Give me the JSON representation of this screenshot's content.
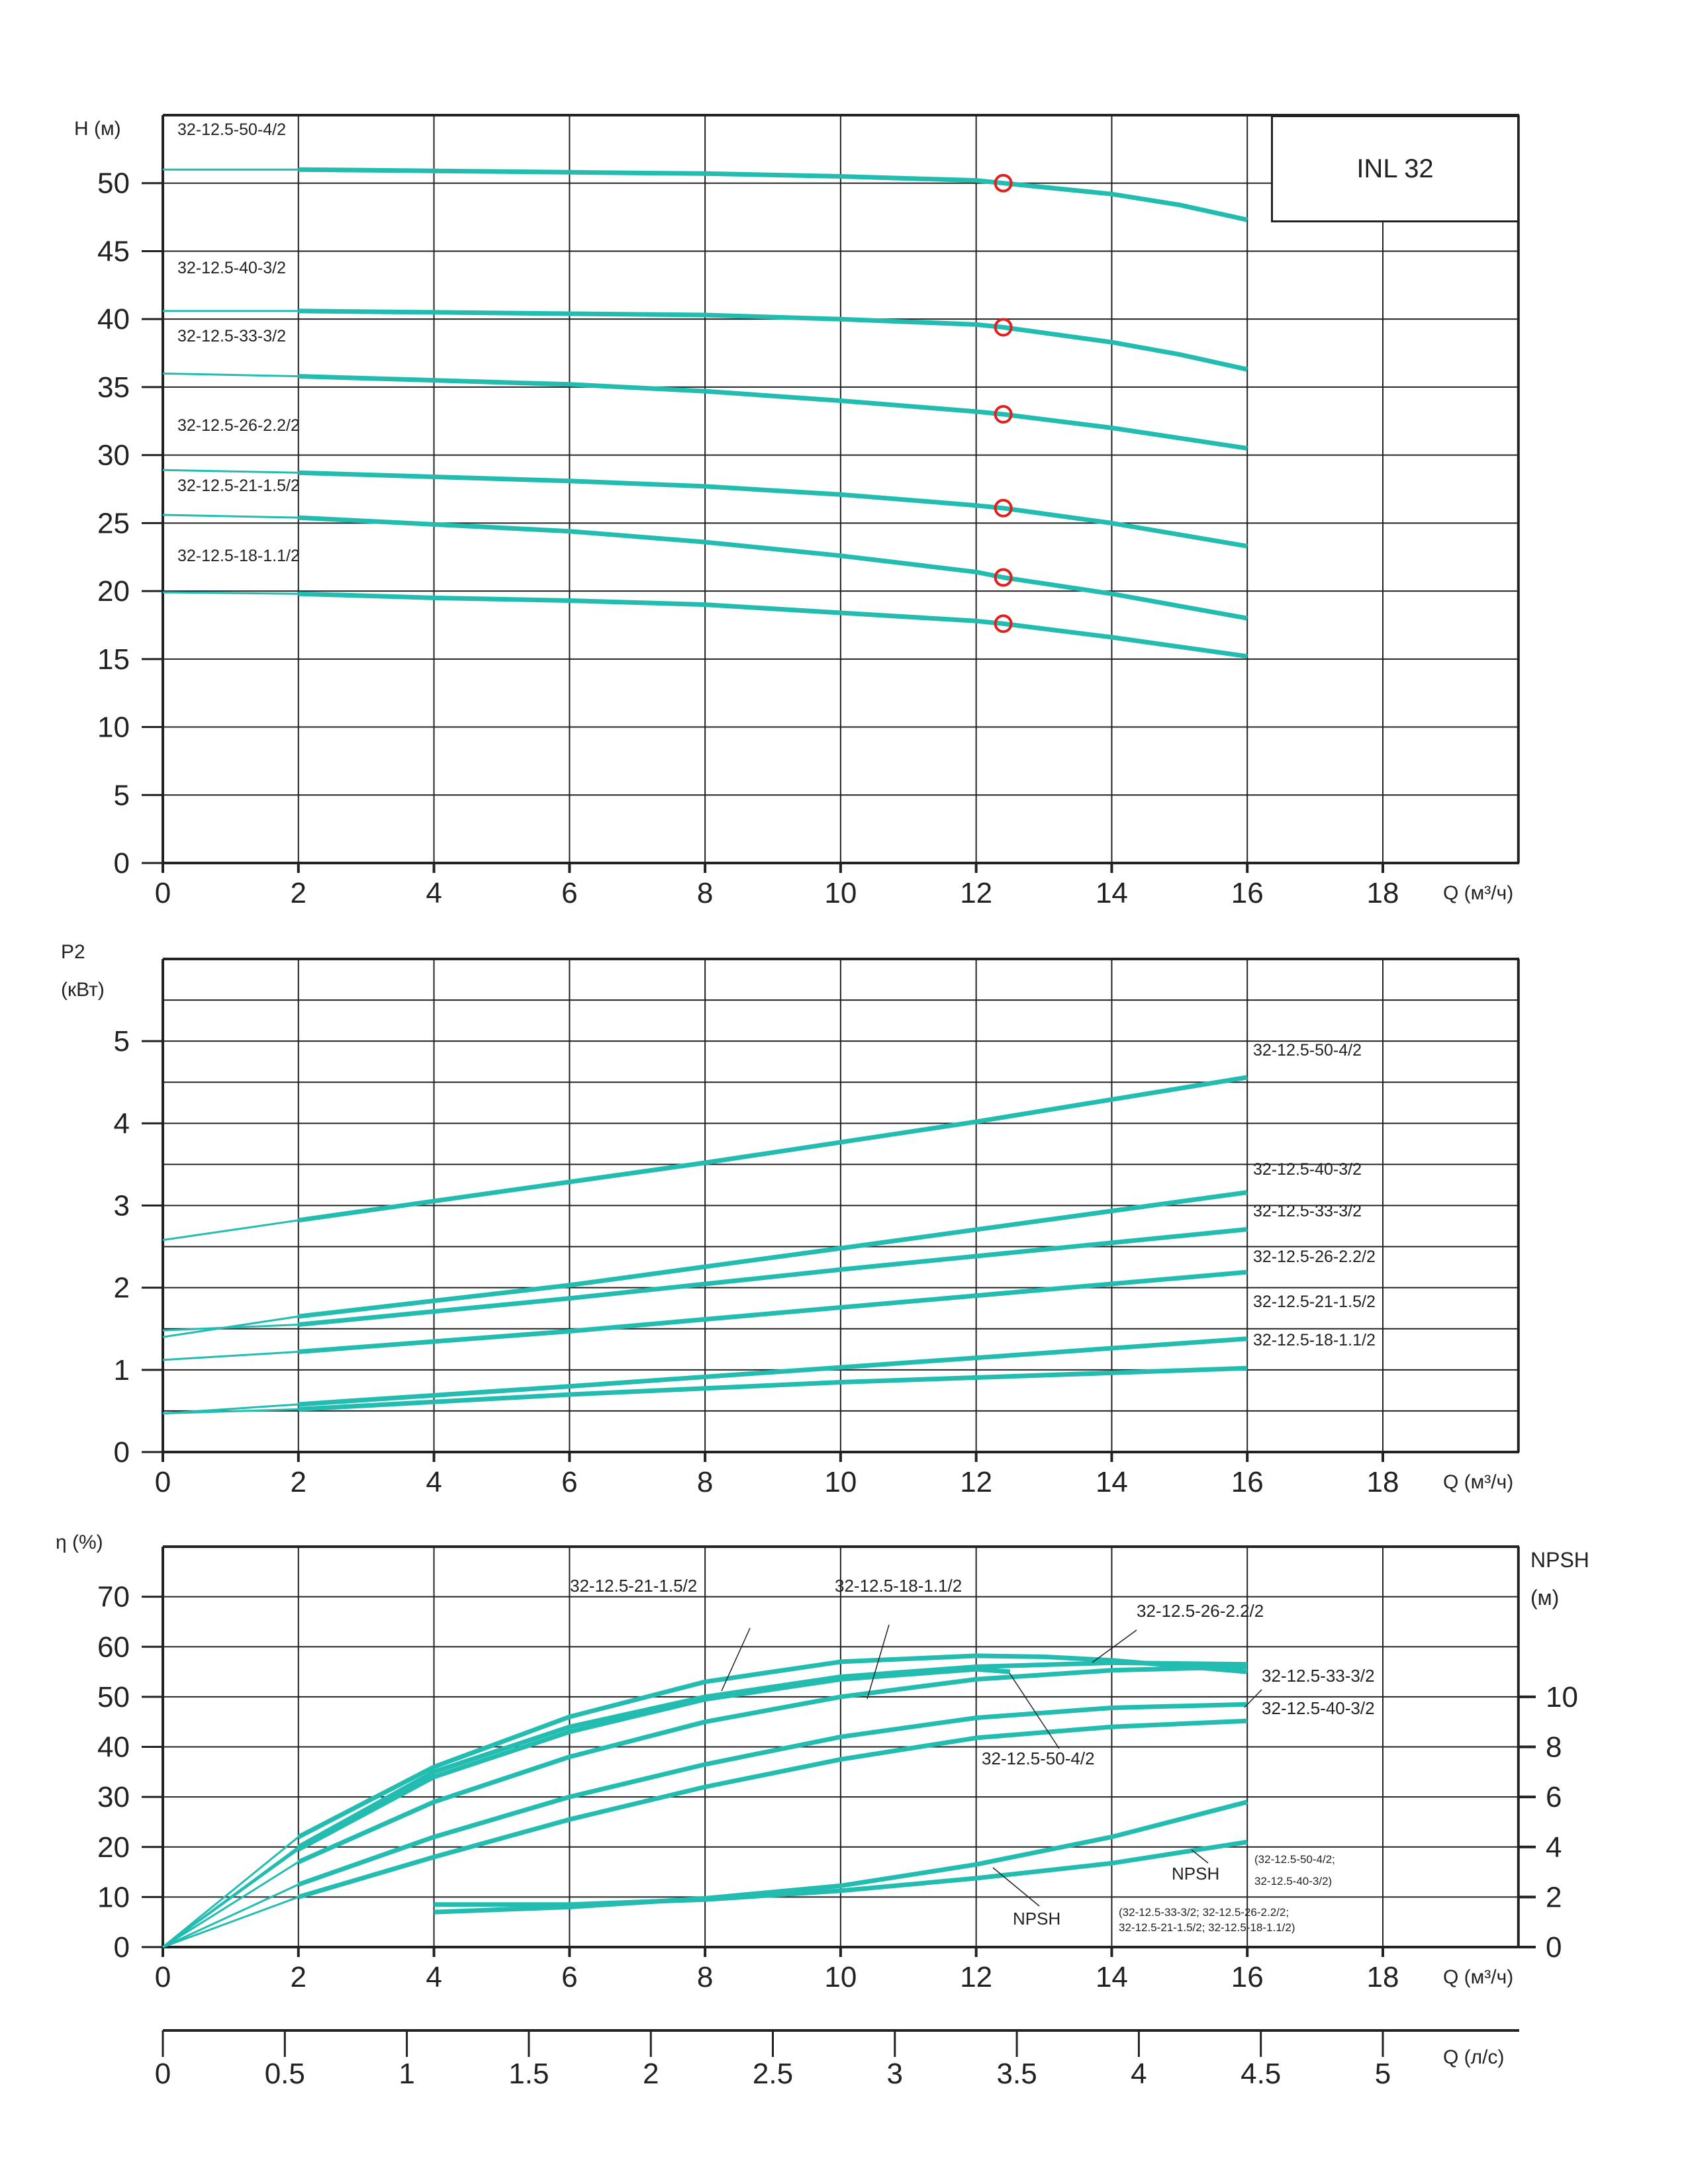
{
  "title": "INL 32",
  "accent": "#22bdb0",
  "duty_color": "#e0201c",
  "chart_data": [
    {
      "type": "line",
      "id": "head",
      "ylabel": "H (м)",
      "xlabel": "Q (м³/ч)",
      "xlim": [
        0,
        20
      ],
      "ylim": [
        0,
        55
      ],
      "xticks": [
        0,
        2,
        4,
        6,
        8,
        10,
        12,
        14,
        16,
        18
      ],
      "yticks": [
        0,
        5,
        10,
        15,
        20,
        25,
        30,
        35,
        40,
        45,
        50
      ],
      "grid": true,
      "duty_points_x": 12.4,
      "series": [
        {
          "name": "32-12.5-50-4/2",
          "x": [
            0,
            2,
            4,
            6,
            8,
            10,
            12,
            12.4,
            14,
            15,
            16
          ],
          "y": [
            51.0,
            51.0,
            50.9,
            50.8,
            50.7,
            50.5,
            50.2,
            50.0,
            49.2,
            48.4,
            47.3
          ]
        },
        {
          "name": "32-12.5-40-3/2",
          "x": [
            0,
            2,
            4,
            6,
            8,
            10,
            12,
            12.4,
            14,
            15,
            16
          ],
          "y": [
            40.6,
            40.6,
            40.5,
            40.4,
            40.3,
            40.0,
            39.6,
            39.4,
            38.3,
            37.4,
            36.3
          ]
        },
        {
          "name": "32-12.5-33-3/2",
          "x": [
            0,
            2,
            4,
            6,
            8,
            10,
            12,
            12.4,
            14,
            16
          ],
          "y": [
            36.0,
            35.8,
            35.5,
            35.2,
            34.7,
            34.0,
            33.2,
            33.0,
            32.0,
            30.5
          ]
        },
        {
          "name": "32-12.5-26-2.2/2",
          "x": [
            0,
            2,
            4,
            6,
            8,
            10,
            12,
            12.4,
            14,
            16
          ],
          "y": [
            28.9,
            28.7,
            28.4,
            28.1,
            27.7,
            27.1,
            26.3,
            26.1,
            25.0,
            23.3
          ]
        },
        {
          "name": "32-12.5-21-1.5/2",
          "x": [
            0,
            2,
            4,
            6,
            8,
            10,
            12,
            12.4,
            14,
            16
          ],
          "y": [
            25.6,
            25.4,
            24.9,
            24.4,
            23.6,
            22.6,
            21.4,
            21.0,
            19.8,
            18.0
          ]
        },
        {
          "name": "32-12.5-18-1.1/2",
          "x": [
            0,
            2,
            4,
            6,
            8,
            10,
            12,
            12.4,
            14,
            16
          ],
          "y": [
            19.9,
            19.8,
            19.5,
            19.3,
            19.0,
            18.4,
            17.8,
            17.6,
            16.6,
            15.2
          ]
        }
      ]
    },
    {
      "type": "line",
      "id": "power",
      "ylabel": "P2",
      "ylabel2": "(кВт)",
      "xlabel": "Q (м³/ч)",
      "xlim": [
        0,
        20
      ],
      "ylim": [
        0,
        6
      ],
      "xticks": [
        0,
        2,
        4,
        6,
        8,
        10,
        12,
        14,
        16,
        18
      ],
      "yticks": [
        0,
        1,
        2,
        3,
        4,
        5
      ],
      "grid": true,
      "series": [
        {
          "name": "32-12.5-50-4/2",
          "x": [
            0,
            2,
            8,
            12,
            16
          ],
          "y": [
            2.58,
            2.82,
            3.52,
            4.02,
            4.56
          ]
        },
        {
          "name": "32-12.5-40-3/2",
          "x": [
            0,
            2,
            6,
            10,
            16
          ],
          "y": [
            1.4,
            1.65,
            2.03,
            2.48,
            3.16
          ]
        },
        {
          "name": "32-12.5-33-3/2",
          "x": [
            0,
            2,
            6,
            10,
            16
          ],
          "y": [
            1.48,
            1.55,
            1.87,
            2.22,
            2.71
          ]
        },
        {
          "name": "32-12.5-26-2.2/2",
          "x": [
            0,
            2,
            6,
            10,
            16
          ],
          "y": [
            1.12,
            1.22,
            1.47,
            1.76,
            2.19
          ]
        },
        {
          "name": "32-12.5-21-1.5/2",
          "x": [
            0,
            2,
            6,
            10,
            16
          ],
          "y": [
            0.47,
            0.58,
            0.8,
            1.03,
            1.38
          ]
        },
        {
          "name": "32-12.5-18-1.1/2",
          "x": [
            0,
            2,
            6,
            10,
            16
          ],
          "y": [
            0.47,
            0.52,
            0.7,
            0.85,
            1.02
          ]
        }
      ]
    },
    {
      "type": "line",
      "id": "efficiency",
      "ylabel": "η (%)",
      "y2label": "NPSH",
      "y2label2": "(м)",
      "xlabel": "Q (м³/ч)",
      "x2label": "Q (л/с)",
      "xlim": [
        0,
        20
      ],
      "ylim": [
        0,
        80
      ],
      "y2lim": [
        0,
        16
      ],
      "xticks": [
        0,
        2,
        4,
        6,
        8,
        10,
        12,
        14,
        16,
        18
      ],
      "yticks": [
        0,
        10,
        20,
        30,
        40,
        50,
        60,
        70
      ],
      "y2ticks": [
        0,
        2,
        4,
        6,
        8,
        10
      ],
      "x2ticks": [
        "0",
        "0.5",
        "1",
        "1.5",
        "2",
        "2.5",
        "3",
        "3.5",
        "4",
        "4.5",
        "5"
      ],
      "series": [
        {
          "name": "32-12.5-21-1.5/2",
          "x": [
            0,
            2,
            4,
            6,
            8,
            10,
            12,
            13,
            14,
            16
          ],
          "y": [
            0,
            22,
            36,
            46,
            53,
            57,
            58.2,
            58,
            57.3,
            55
          ]
        },
        {
          "name": "32-12.5-26-2.2/2",
          "x": [
            0,
            2,
            4,
            6,
            8,
            10,
            12,
            14,
            16
          ],
          "y": [
            0,
            20,
            35,
            44,
            50,
            54,
            56,
            56.8,
            56.5
          ]
        },
        {
          "name": "32-12.5-18-1.1/2",
          "x": [
            0,
            2,
            4,
            6,
            8,
            10,
            12,
            12.5
          ],
          "y": [
            0,
            19.5,
            34,
            43,
            49.5,
            53.5,
            55.5,
            55
          ]
        },
        {
          "name": "32-12.5-33-3/2",
          "x": [
            0,
            2,
            4,
            6,
            8,
            10,
            12,
            14,
            16
          ],
          "y": [
            0,
            17,
            29,
            38,
            45,
            50,
            53.5,
            55.3,
            56
          ]
        },
        {
          "name": "32-12.5-40-3/2",
          "x": [
            0,
            2,
            4,
            6,
            8,
            10,
            12,
            14,
            16
          ],
          "y": [
            0,
            12.5,
            22,
            30,
            36.5,
            42,
            45.8,
            47.8,
            48.5
          ]
        },
        {
          "name": "32-12.5-50-4/2",
          "x": [
            0,
            2,
            4,
            6,
            8,
            10,
            12,
            14,
            16
          ],
          "y": [
            0,
            10,
            18,
            25.5,
            32,
            37.5,
            41.8,
            44,
            45.2
          ]
        }
      ],
      "npsh_series": [
        {
          "name": "NPSH",
          "group": "(32-12.5-33-3/2; 32-12.5-26-2.2/2;",
          "group2": "32-12.5-21-1.5/2; 32-12.5-18-1.1/2)",
          "x": [
            4,
            6,
            8,
            10,
            12,
            14,
            16
          ],
          "y": [
            1.4,
            1.6,
            1.95,
            2.45,
            3.3,
            4.4,
            5.8
          ]
        },
        {
          "name": "NPSH",
          "group": "(32-12.5-50-4/2;",
          "group2": "32-12.5-40-3/2)",
          "x": [
            4,
            6,
            8,
            10,
            12,
            14,
            16
          ],
          "y": [
            1.7,
            1.7,
            1.9,
            2.25,
            2.75,
            3.35,
            4.2
          ]
        }
      ]
    }
  ]
}
